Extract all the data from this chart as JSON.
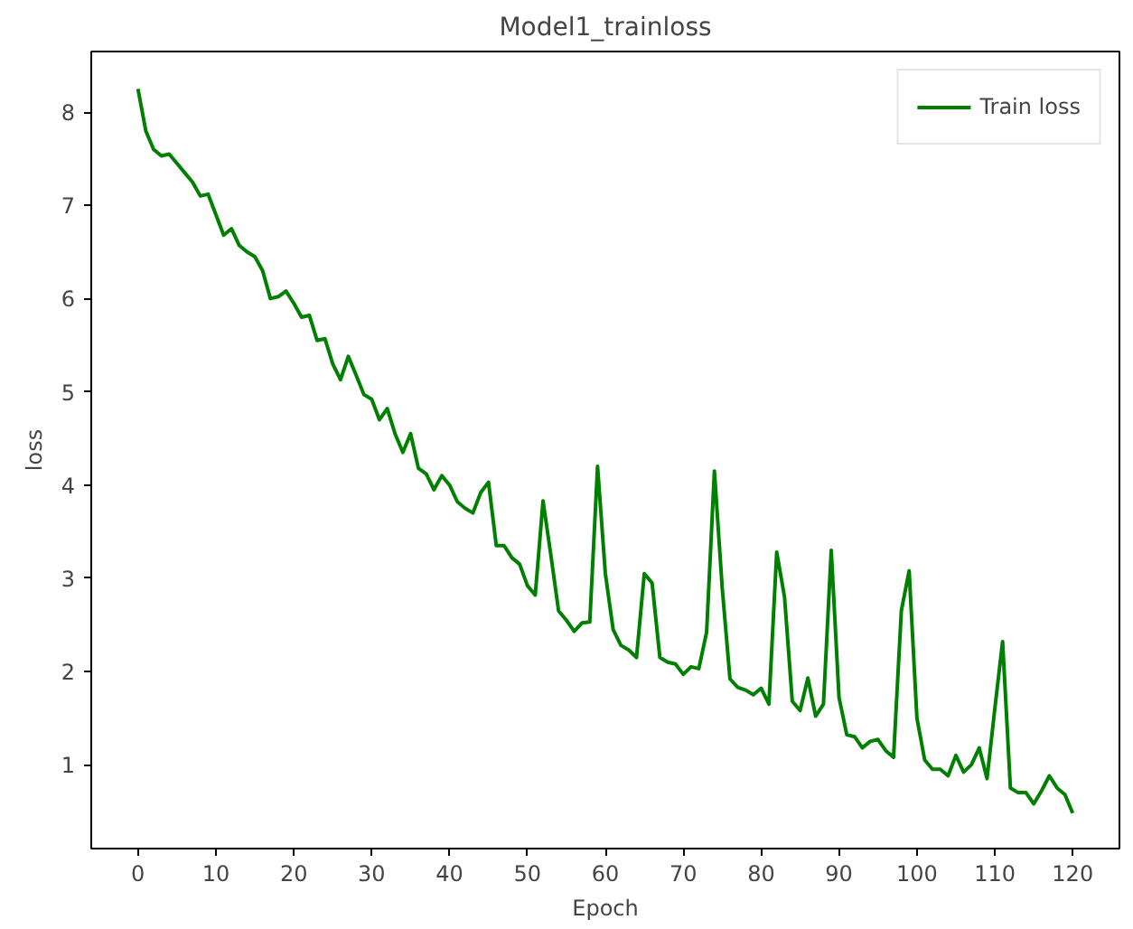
{
  "chart_data": {
    "type": "line",
    "title": "Model1_trainloss",
    "xlabel": "Epoch",
    "ylabel": "loss",
    "x": [
      0,
      1,
      2,
      3,
      4,
      5,
      6,
      7,
      8,
      9,
      10,
      11,
      12,
      13,
      14,
      15,
      16,
      17,
      18,
      19,
      20,
      21,
      22,
      23,
      24,
      25,
      26,
      27,
      28,
      29,
      30,
      31,
      32,
      33,
      34,
      35,
      36,
      37,
      38,
      39,
      40,
      41,
      42,
      43,
      44,
      45,
      46,
      47,
      48,
      49,
      50,
      51,
      52,
      53,
      54,
      55,
      56,
      57,
      58,
      59,
      60,
      61,
      62,
      63,
      64,
      65,
      66,
      67,
      68,
      69,
      70,
      71,
      72,
      73,
      74,
      75,
      76,
      77,
      78,
      79,
      80,
      81,
      82,
      83,
      84,
      85,
      86,
      87,
      88,
      89,
      90,
      91,
      92,
      93,
      94,
      95,
      96,
      97,
      98,
      99,
      100,
      101,
      102,
      103,
      104,
      105,
      106,
      107,
      108,
      109,
      110,
      111,
      112,
      113,
      114,
      115,
      116,
      117,
      118,
      119,
      120
    ],
    "series": [
      {
        "name": "Train loss",
        "color": "#008000",
        "values": [
          8.25,
          7.8,
          7.6,
          7.53,
          7.55,
          7.45,
          7.35,
          7.25,
          7.1,
          7.12,
          6.9,
          6.68,
          6.75,
          6.57,
          6.5,
          6.45,
          6.3,
          6.0,
          6.02,
          6.08,
          5.95,
          5.8,
          5.82,
          5.55,
          5.57,
          5.3,
          5.13,
          5.38,
          5.18,
          4.97,
          4.92,
          4.7,
          4.82,
          4.55,
          4.35,
          4.55,
          4.18,
          4.12,
          3.95,
          4.1,
          4.0,
          3.82,
          3.75,
          3.7,
          3.92,
          4.03,
          3.35,
          3.35,
          3.22,
          3.15,
          2.92,
          2.82,
          3.83,
          3.25,
          2.65,
          2.55,
          2.43,
          2.52,
          2.53,
          4.2,
          3.05,
          2.45,
          2.28,
          2.23,
          2.15,
          3.05,
          2.95,
          2.15,
          2.1,
          2.08,
          1.97,
          2.05,
          2.03,
          2.42,
          4.15,
          2.9,
          1.92,
          1.83,
          1.8,
          1.75,
          1.82,
          1.65,
          3.28,
          2.8,
          1.68,
          1.58,
          1.93,
          1.52,
          1.65,
          3.3,
          1.72,
          1.32,
          1.3,
          1.18,
          1.25,
          1.27,
          1.15,
          1.08,
          2.65,
          3.08,
          1.5,
          1.05,
          0.95,
          0.95,
          0.88,
          1.1,
          0.92,
          1.0,
          1.18,
          0.85,
          1.6,
          2.32,
          0.75,
          0.7,
          0.7,
          0.58,
          0.72,
          0.88,
          0.75,
          0.68,
          0.48
        ]
      }
    ],
    "xlim": [
      -6,
      126
    ],
    "ylim": [
      0.1,
      8.65
    ],
    "xticks": [
      0,
      10,
      20,
      30,
      40,
      50,
      60,
      70,
      80,
      90,
      100,
      110,
      120
    ],
    "yticks": [
      1,
      2,
      3,
      4,
      5,
      6,
      7,
      8
    ],
    "grid": false,
    "legend": "top right",
    "marker": "none",
    "line_style": "solid"
  }
}
